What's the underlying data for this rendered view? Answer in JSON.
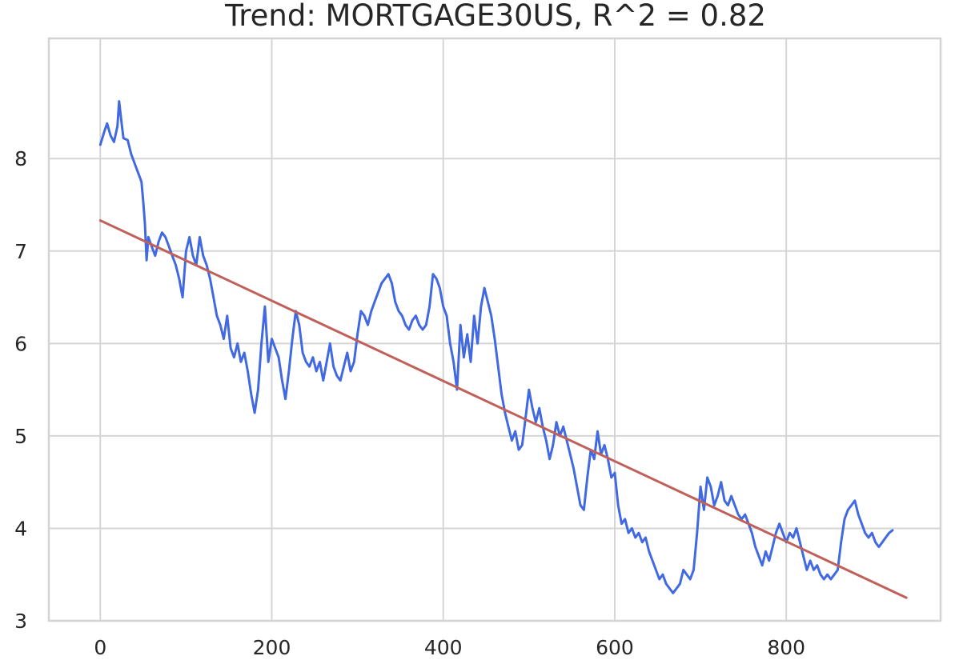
{
  "chart_data": {
    "type": "line",
    "title": "Trend: MORTGAGE30US, R^2 = 0.82",
    "xlabel": "",
    "ylabel": "",
    "xlim": [
      -60,
      980
    ],
    "ylim": [
      3,
      9.3
    ],
    "grid": true,
    "x_ticks": [
      0,
      200,
      400,
      600,
      800
    ],
    "y_ticks": [
      3,
      4,
      5,
      6,
      7,
      8
    ],
    "x_tick_labels": [
      "0",
      "200",
      "400",
      "600",
      "800"
    ],
    "y_tick_labels": [
      "3",
      "4",
      "5",
      "6",
      "7",
      "8"
    ],
    "series": [
      {
        "color": "#4169e1",
        "points": [
          [
            0,
            8.15
          ],
          [
            5,
            8.3
          ],
          [
            8,
            8.38
          ],
          [
            12,
            8.25
          ],
          [
            16,
            8.18
          ],
          [
            20,
            8.35
          ],
          [
            22,
            8.62
          ],
          [
            24,
            8.45
          ],
          [
            27,
            8.22
          ],
          [
            32,
            8.2
          ],
          [
            36,
            8.05
          ],
          [
            40,
            7.95
          ],
          [
            44,
            7.85
          ],
          [
            48,
            7.75
          ],
          [
            50,
            7.55
          ],
          [
            52,
            7.3
          ],
          [
            54,
            6.9
          ],
          [
            56,
            7.15
          ],
          [
            60,
            7.05
          ],
          [
            64,
            6.95
          ],
          [
            68,
            7.1
          ],
          [
            72,
            7.2
          ],
          [
            76,
            7.15
          ],
          [
            80,
            7.05
          ],
          [
            84,
            6.95
          ],
          [
            88,
            6.85
          ],
          [
            92,
            6.7
          ],
          [
            96,
            6.5
          ],
          [
            100,
            7.0
          ],
          [
            104,
            7.15
          ],
          [
            108,
            6.95
          ],
          [
            112,
            6.85
          ],
          [
            116,
            7.15
          ],
          [
            120,
            6.95
          ],
          [
            124,
            6.85
          ],
          [
            128,
            6.7
          ],
          [
            132,
            6.5
          ],
          [
            136,
            6.3
          ],
          [
            140,
            6.2
          ],
          [
            144,
            6.05
          ],
          [
            148,
            6.3
          ],
          [
            152,
            5.95
          ],
          [
            156,
            5.85
          ],
          [
            160,
            6.0
          ],
          [
            164,
            5.8
          ],
          [
            168,
            5.9
          ],
          [
            172,
            5.7
          ],
          [
            176,
            5.45
          ],
          [
            180,
            5.25
          ],
          [
            184,
            5.5
          ],
          [
            188,
            6.0
          ],
          [
            192,
            6.4
          ],
          [
            196,
            5.8
          ],
          [
            200,
            6.05
          ],
          [
            204,
            5.95
          ],
          [
            208,
            5.85
          ],
          [
            212,
            5.6
          ],
          [
            216,
            5.4
          ],
          [
            220,
            5.7
          ],
          [
            224,
            6.05
          ],
          [
            228,
            6.35
          ],
          [
            232,
            6.2
          ],
          [
            236,
            5.9
          ],
          [
            240,
            5.8
          ],
          [
            244,
            5.75
          ],
          [
            248,
            5.85
          ],
          [
            252,
            5.7
          ],
          [
            256,
            5.8
          ],
          [
            260,
            5.6
          ],
          [
            264,
            5.8
          ],
          [
            268,
            6.0
          ],
          [
            272,
            5.75
          ],
          [
            276,
            5.65
          ],
          [
            280,
            5.6
          ],
          [
            284,
            5.75
          ],
          [
            288,
            5.9
          ],
          [
            292,
            5.7
          ],
          [
            296,
            5.8
          ],
          [
            300,
            6.1
          ],
          [
            304,
            6.35
          ],
          [
            308,
            6.3
          ],
          [
            312,
            6.2
          ],
          [
            316,
            6.35
          ],
          [
            320,
            6.45
          ],
          [
            324,
            6.55
          ],
          [
            328,
            6.65
          ],
          [
            332,
            6.7
          ],
          [
            336,
            6.75
          ],
          [
            340,
            6.65
          ],
          [
            344,
            6.45
          ],
          [
            348,
            6.35
          ],
          [
            352,
            6.3
          ],
          [
            356,
            6.2
          ],
          [
            360,
            6.15
          ],
          [
            364,
            6.25
          ],
          [
            368,
            6.3
          ],
          [
            372,
            6.2
          ],
          [
            376,
            6.15
          ],
          [
            380,
            6.2
          ],
          [
            384,
            6.4
          ],
          [
            388,
            6.75
          ],
          [
            392,
            6.7
          ],
          [
            396,
            6.6
          ],
          [
            400,
            6.4
          ],
          [
            404,
            6.3
          ],
          [
            408,
            6.0
          ],
          [
            412,
            5.8
          ],
          [
            416,
            5.5
          ],
          [
            420,
            6.2
          ],
          [
            424,
            5.85
          ],
          [
            428,
            6.1
          ],
          [
            432,
            5.8
          ],
          [
            436,
            6.3
          ],
          [
            440,
            6.0
          ],
          [
            444,
            6.4
          ],
          [
            448,
            6.6
          ],
          [
            452,
            6.45
          ],
          [
            456,
            6.3
          ],
          [
            460,
            6.05
          ],
          [
            464,
            5.75
          ],
          [
            468,
            5.45
          ],
          [
            472,
            5.25
          ],
          [
            476,
            5.1
          ],
          [
            480,
            4.95
          ],
          [
            484,
            5.05
          ],
          [
            488,
            4.85
          ],
          [
            492,
            4.9
          ],
          [
            496,
            5.2
          ],
          [
            500,
            5.5
          ],
          [
            504,
            5.3
          ],
          [
            508,
            5.15
          ],
          [
            512,
            5.3
          ],
          [
            516,
            5.1
          ],
          [
            520,
            4.95
          ],
          [
            524,
            4.75
          ],
          [
            528,
            4.9
          ],
          [
            532,
            5.15
          ],
          [
            536,
            5.0
          ],
          [
            540,
            5.1
          ],
          [
            544,
            4.95
          ],
          [
            548,
            4.8
          ],
          [
            552,
            4.65
          ],
          [
            556,
            4.45
          ],
          [
            560,
            4.25
          ],
          [
            564,
            4.2
          ],
          [
            568,
            4.55
          ],
          [
            572,
            4.85
          ],
          [
            576,
            4.75
          ],
          [
            580,
            5.05
          ],
          [
            584,
            4.8
          ],
          [
            588,
            4.9
          ],
          [
            592,
            4.75
          ],
          [
            596,
            4.55
          ],
          [
            600,
            4.6
          ],
          [
            604,
            4.25
          ],
          [
            608,
            4.05
          ],
          [
            612,
            4.1
          ],
          [
            616,
            3.95
          ],
          [
            620,
            4.0
          ],
          [
            624,
            3.9
          ],
          [
            628,
            3.95
          ],
          [
            632,
            3.85
          ],
          [
            636,
            3.9
          ],
          [
            640,
            3.75
          ],
          [
            644,
            3.65
          ],
          [
            648,
            3.55
          ],
          [
            652,
            3.45
          ],
          [
            656,
            3.5
          ],
          [
            660,
            3.4
          ],
          [
            664,
            3.35
          ],
          [
            668,
            3.3
          ],
          [
            672,
            3.35
          ],
          [
            676,
            3.4
          ],
          [
            680,
            3.55
          ],
          [
            684,
            3.5
          ],
          [
            688,
            3.45
          ],
          [
            692,
            3.55
          ],
          [
            696,
            3.95
          ],
          [
            700,
            4.45
          ],
          [
            704,
            4.2
          ],
          [
            708,
            4.55
          ],
          [
            712,
            4.45
          ],
          [
            716,
            4.25
          ],
          [
            720,
            4.35
          ],
          [
            724,
            4.5
          ],
          [
            728,
            4.3
          ],
          [
            732,
            4.25
          ],
          [
            736,
            4.35
          ],
          [
            740,
            4.25
          ],
          [
            744,
            4.15
          ],
          [
            748,
            4.1
          ],
          [
            752,
            4.15
          ],
          [
            756,
            4.05
          ],
          [
            760,
            3.95
          ],
          [
            764,
            3.8
          ],
          [
            768,
            3.7
          ],
          [
            772,
            3.6
          ],
          [
            776,
            3.75
          ],
          [
            780,
            3.65
          ],
          [
            784,
            3.8
          ],
          [
            788,
            3.95
          ],
          [
            792,
            4.05
          ],
          [
            796,
            3.95
          ],
          [
            800,
            3.85
          ],
          [
            804,
            3.95
          ],
          [
            808,
            3.9
          ],
          [
            812,
            4.0
          ],
          [
            816,
            3.85
          ],
          [
            820,
            3.7
          ],
          [
            824,
            3.55
          ],
          [
            828,
            3.65
          ],
          [
            832,
            3.55
          ],
          [
            836,
            3.6
          ],
          [
            840,
            3.5
          ],
          [
            844,
            3.45
          ],
          [
            848,
            3.5
          ],
          [
            852,
            3.45
          ],
          [
            856,
            3.5
          ],
          [
            860,
            3.55
          ],
          [
            864,
            3.85
          ],
          [
            868,
            4.1
          ],
          [
            872,
            4.2
          ],
          [
            876,
            4.25
          ],
          [
            880,
            4.3
          ],
          [
            884,
            4.15
          ],
          [
            888,
            4.05
          ],
          [
            892,
            3.95
          ],
          [
            896,
            3.9
          ],
          [
            900,
            3.95
          ],
          [
            904,
            3.85
          ],
          [
            908,
            3.8
          ],
          [
            912,
            3.85
          ],
          [
            916,
            3.9
          ],
          [
            920,
            3.95
          ],
          [
            924,
            3.98
          ]
        ]
      },
      {
        "color": "#c0605a",
        "points": [
          [
            0,
            7.33
          ],
          [
            940,
            3.25
          ]
        ]
      }
    ]
  }
}
